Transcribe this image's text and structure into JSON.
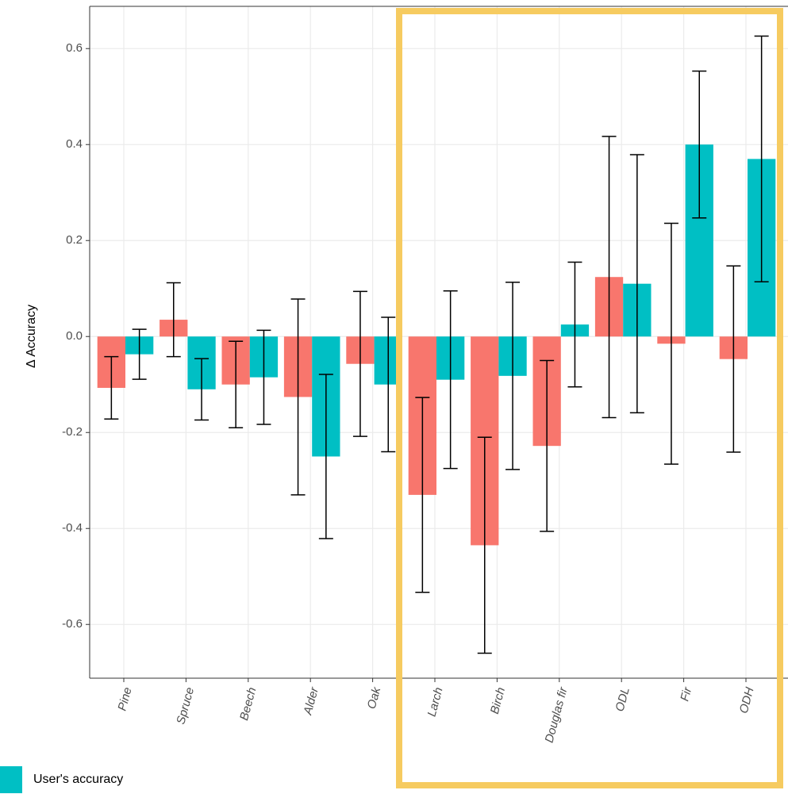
{
  "chart_data": {
    "type": "bar",
    "ylabel": "Δ Accuracy",
    "categories": [
      "Pine",
      "Spruce",
      "Beech",
      "Alder",
      "Oak",
      "Larch",
      "Birch",
      "Douglas fir",
      "ODL",
      "Fir",
      "ODH"
    ],
    "series": [
      {
        "color": "#f8766d",
        "values": [
          -0.107,
          0.035,
          -0.1,
          -0.126,
          -0.057,
          -0.33,
          -0.435,
          -0.228,
          0.124,
          -0.015,
          -0.047
        ],
        "errors": [
          0.065,
          0.077,
          0.09,
          0.204,
          0.151,
          0.203,
          0.225,
          0.178,
          0.293,
          0.251,
          0.194
        ]
      },
      {
        "name": "User's accuracy",
        "color": "#00bfc4",
        "values": [
          -0.037,
          -0.11,
          -0.085,
          -0.25,
          -0.1,
          -0.09,
          -0.082,
          0.025,
          0.11,
          0.4,
          0.37
        ],
        "errors": [
          0.052,
          0.064,
          0.098,
          0.171,
          0.14,
          0.185,
          0.195,
          0.13,
          0.269,
          0.153,
          0.256
        ]
      }
    ],
    "ylim": [
      -0.712,
      0.688
    ],
    "yticks": [
      -0.6,
      -0.4,
      -0.2,
      {
        "value": 0,
        "label": "0.0"
      },
      0.2,
      0.4,
      0.6
    ],
    "grid": true,
    "legend": "bottom-left"
  }
}
